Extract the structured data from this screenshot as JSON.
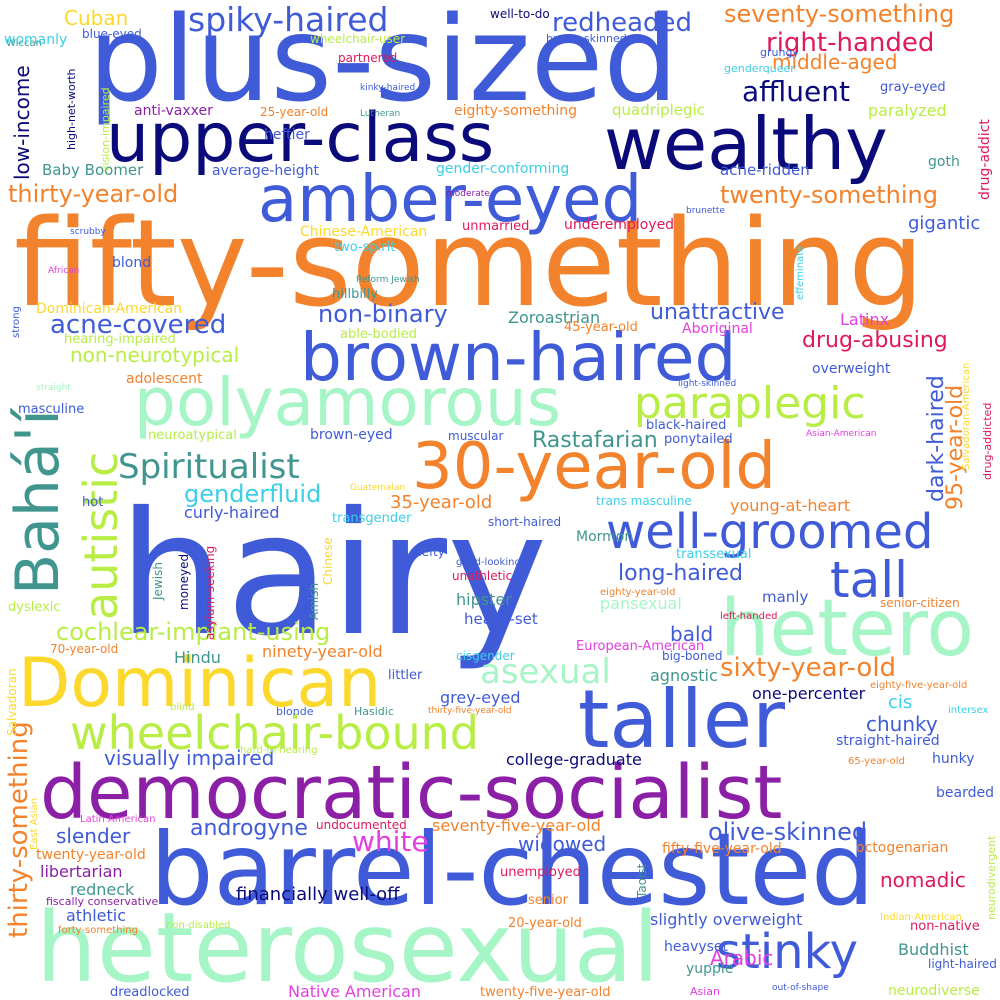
{
  "words": [
    {
      "text": "hairy",
      "color": "#3f5bd8"
    },
    {
      "text": "fifty-something",
      "color": "#f3822c"
    },
    {
      "text": "plus-sized",
      "color": "#3f5bd8"
    },
    {
      "text": "barrel-chested",
      "color": "#3f5bd8"
    },
    {
      "text": "heterosexual",
      "color": "#a6f5c6"
    },
    {
      "text": "democratic-socialist",
      "color": "#8b1fa6"
    },
    {
      "text": "upper-class",
      "color": "#0a0a7a"
    },
    {
      "text": "wealthy",
      "color": "#0a0a7a"
    },
    {
      "text": "taller",
      "color": "#3f5bd8"
    },
    {
      "text": "Dominican",
      "color": "#fbd82b"
    },
    {
      "text": "hetero",
      "color": "#a6f5c6"
    },
    {
      "text": "polyamorous",
      "color": "#a6f5c6"
    },
    {
      "text": "brown-haired",
      "color": "#3f5bd8"
    },
    {
      "text": "amber-eyed",
      "color": "#3f5bd8"
    },
    {
      "text": "30-year-old",
      "color": "#f3822c"
    },
    {
      "text": "Bahá'í",
      "color": "#40968f"
    },
    {
      "text": "wheelchair-bound",
      "color": "#b8ed46"
    },
    {
      "text": "autistic",
      "color": "#b8ed46"
    },
    {
      "text": "well-groomed",
      "color": "#3f5bd8"
    },
    {
      "text": "paraplegic",
      "color": "#b8ed46"
    },
    {
      "text": "tall",
      "color": "#3f5bd8"
    },
    {
      "text": "stinky",
      "color": "#3f5bd8"
    },
    {
      "text": "thirty-something",
      "color": "#f3822c"
    },
    {
      "text": "Spiritualist",
      "color": "#40968f"
    },
    {
      "text": "spiky-haired",
      "color": "#3f5bd8"
    },
    {
      "text": "asexual",
      "color": "#a6f5c6"
    },
    {
      "text": "affluent",
      "color": "#0a0a7a"
    },
    {
      "text": "sixty-year-old",
      "color": "#f3822c"
    },
    {
      "text": "redheaded",
      "color": "#3f5bd8"
    },
    {
      "text": "right-handed",
      "color": "#e0195a"
    },
    {
      "text": "seventy-something",
      "color": "#f3822c"
    },
    {
      "text": "twenty-something",
      "color": "#f3822c"
    },
    {
      "text": "thirty-year-old",
      "color": "#f3822c"
    },
    {
      "text": "acne-covered",
      "color": "#3f5bd8"
    },
    {
      "text": "non-binary",
      "color": "#3f5bd8"
    },
    {
      "text": "cochlear-implant-using",
      "color": "#b8ed46"
    },
    {
      "text": "genderfluid",
      "color": "#3ccfe6"
    },
    {
      "text": "white",
      "color": "#e43fe0"
    },
    {
      "text": "olive-skinned",
      "color": "#3f5bd8"
    },
    {
      "text": "androgyne",
      "color": "#3f5bd8"
    },
    {
      "text": "long-haired",
      "color": "#3f5bd8"
    },
    {
      "text": "dark-haired",
      "color": "#3f5bd8"
    },
    {
      "text": "95-year-old",
      "color": "#f3822c"
    },
    {
      "text": "Rastafarian",
      "color": "#40968f"
    },
    {
      "text": "unattractive",
      "color": "#3f5bd8"
    },
    {
      "text": "drug-abusing",
      "color": "#e0195a"
    },
    {
      "text": "middle-aged",
      "color": "#f3822c"
    },
    {
      "text": "low-income",
      "color": "#0a0a7a"
    },
    {
      "text": "non-neurotypical",
      "color": "#b8ed46"
    },
    {
      "text": "visually impaired",
      "color": "#3f5bd8"
    },
    {
      "text": "chunky",
      "color": "#3f5bd8"
    },
    {
      "text": "slender",
      "color": "#3f5bd8"
    },
    {
      "text": "bald",
      "color": "#3f5bd8"
    },
    {
      "text": "widowed",
      "color": "#3f5bd8"
    },
    {
      "text": "nomadic",
      "color": "#e0195a"
    },
    {
      "text": "financially well-off",
      "color": "#0a0a7a"
    },
    {
      "text": "Arabic",
      "color": "#e43fe0"
    },
    {
      "text": "Cuban",
      "color": "#fbd82b"
    },
    {
      "text": "curly-haired",
      "color": "#3f5bd8"
    },
    {
      "text": "35-year-old",
      "color": "#f3822c"
    },
    {
      "text": "young-at-heart",
      "color": "#f3822c"
    },
    {
      "text": "hipster",
      "color": "#40968f"
    },
    {
      "text": "pansexual",
      "color": "#a6f5c6"
    },
    {
      "text": "ninety-year-old",
      "color": "#f3822c"
    },
    {
      "text": "Hindu",
      "color": "#40968f"
    },
    {
      "text": "one-percenter",
      "color": "#0a0a7a"
    },
    {
      "text": "cis",
      "color": "#3ccfe6"
    },
    {
      "text": "gigantic",
      "color": "#3f5bd8"
    },
    {
      "text": "Baby Boomer",
      "color": "#40968f"
    },
    {
      "text": "Zoroastrian",
      "color": "#40968f"
    },
    {
      "text": "Latinx",
      "color": "#e43fe0"
    },
    {
      "text": "grey-eyed",
      "color": "#3f5bd8"
    },
    {
      "text": "agnostic",
      "color": "#40968f"
    },
    {
      "text": "college-graduate",
      "color": "#0a0a7a"
    },
    {
      "text": "seventy-five-year-old",
      "color": "#f3822c"
    },
    {
      "text": "libertarian",
      "color": "#8b1fa6"
    },
    {
      "text": "redneck",
      "color": "#40968f"
    },
    {
      "text": "athletic",
      "color": "#3f5bd8"
    },
    {
      "text": "slightly overweight",
      "color": "#3f5bd8"
    },
    {
      "text": "fifty-five-year-old",
      "color": "#f3822c"
    },
    {
      "text": "Buddhist",
      "color": "#40968f"
    },
    {
      "text": "Native American",
      "color": "#e43fe0"
    },
    {
      "text": "twenty-five-year-old",
      "color": "#f3822c"
    },
    {
      "text": "neurodiverse",
      "color": "#b8ed46"
    },
    {
      "text": "heavyset",
      "color": "#3f5bd8"
    },
    {
      "text": "yuppie",
      "color": "#40968f"
    },
    {
      "text": "twenty-year-old",
      "color": "#f3822c"
    },
    {
      "text": "hunky",
      "color": "#3f5bd8"
    },
    {
      "text": "straight-haired",
      "color": "#3f5bd8"
    },
    {
      "text": "bearded",
      "color": "#3f5bd8"
    },
    {
      "text": "octogenarian",
      "color": "#f3822c"
    },
    {
      "text": "manly",
      "color": "#3f5bd8"
    },
    {
      "text": "heavy-set",
      "color": "#3f5bd8"
    },
    {
      "text": "big-boned",
      "color": "#3f5bd8"
    },
    {
      "text": "European-American",
      "color": "#e43fe0"
    },
    {
      "text": "drug-addict",
      "color": "#e0195a"
    },
    {
      "text": "goth",
      "color": "#40968f"
    },
    {
      "text": "paralyzed",
      "color": "#b8ed46"
    },
    {
      "text": "gray-eyed",
      "color": "#3f5bd8"
    },
    {
      "text": "acne-ridden",
      "color": "#3f5bd8"
    },
    {
      "text": "quadriplegic",
      "color": "#b8ed46"
    },
    {
      "text": "heftier",
      "color": "#3f5bd8"
    },
    {
      "text": "eighty-something",
      "color": "#f3822c"
    },
    {
      "text": "gender-conforming",
      "color": "#3ccfe6"
    },
    {
      "text": "average-height",
      "color": "#3f5bd8"
    },
    {
      "text": "anti-vaxxer",
      "color": "#8b1fa6"
    },
    {
      "text": "underemployed",
      "color": "#e0195a"
    },
    {
      "text": "unmarried",
      "color": "#e0195a"
    },
    {
      "text": "Chinese-American",
      "color": "#fbd82b"
    },
    {
      "text": "two-spirit",
      "color": "#3ccfe6"
    },
    {
      "text": "blond",
      "color": "#3f5bd8"
    },
    {
      "text": "hillbilly",
      "color": "#40968f"
    },
    {
      "text": "Dominican-American",
      "color": "#fbd82b"
    },
    {
      "text": "hearing-impaired",
      "color": "#b8ed46"
    },
    {
      "text": "able-bodied",
      "color": "#b8ed46"
    },
    {
      "text": "45-year-old",
      "color": "#f3822c"
    },
    {
      "text": "Aboriginal",
      "color": "#e43fe0"
    },
    {
      "text": "overweight",
      "color": "#3f5bd8"
    },
    {
      "text": "adolescent",
      "color": "#f3822c"
    },
    {
      "text": "masculine",
      "color": "#3f5bd8"
    },
    {
      "text": "neuroatypical",
      "color": "#b8ed46"
    },
    {
      "text": "brown-eyed",
      "color": "#3f5bd8"
    },
    {
      "text": "muscular",
      "color": "#3f5bd8"
    },
    {
      "text": "black-haired",
      "color": "#3f5bd8"
    },
    {
      "text": "ponytailed",
      "color": "#3f5bd8"
    },
    {
      "text": "trans masculine",
      "color": "#3ccfe6"
    },
    {
      "text": "transgender",
      "color": "#3ccfe6"
    },
    {
      "text": "short-haired",
      "color": "#3f5bd8"
    },
    {
      "text": "Mormon",
      "color": "#40968f"
    },
    {
      "text": "hot",
      "color": "#3f5bd8"
    },
    {
      "text": "transsexual",
      "color": "#3ccfe6"
    },
    {
      "text": "hefty",
      "color": "#3f5bd8"
    },
    {
      "text": "good-looking",
      "color": "#3f5bd8"
    },
    {
      "text": "unathletic",
      "color": "#e0195a"
    },
    {
      "text": "dyslexic",
      "color": "#b8ed46"
    },
    {
      "text": "Jewish",
      "color": "#40968f"
    },
    {
      "text": "moneyed",
      "color": "#0a0a7a"
    },
    {
      "text": "asylum-seeking",
      "color": "#e0195a"
    },
    {
      "text": "Amish",
      "color": "#40968f"
    },
    {
      "text": "Chinese",
      "color": "#fbd82b"
    },
    {
      "text": "70-year-old",
      "color": "#f3822c"
    },
    {
      "text": "cisgender",
      "color": "#3ccfe6"
    },
    {
      "text": "littler",
      "color": "#3f5bd8"
    },
    {
      "text": "Salvadoran",
      "color": "#fbd82b"
    },
    {
      "text": "blind",
      "color": "#b8ed46"
    },
    {
      "text": "blonde",
      "color": "#3f5bd8"
    },
    {
      "text": "Hasidic",
      "color": "#40968f"
    },
    {
      "text": "thirty-five-year-old",
      "color": "#f3822c"
    },
    {
      "text": "hard-of-hearing",
      "color": "#b8ed46"
    },
    {
      "text": "65-year-old",
      "color": "#f3822c"
    },
    {
      "text": "intersex",
      "color": "#3ccfe6"
    },
    {
      "text": "eighty-five-year-old",
      "color": "#f3822c"
    },
    {
      "text": "left-handed",
      "color": "#e0195a"
    },
    {
      "text": "eighty-year-old",
      "color": "#f3822c"
    },
    {
      "text": "senior-citizen",
      "color": "#f3822c"
    },
    {
      "text": "Latin American",
      "color": "#e43fe0"
    },
    {
      "text": "undocumented",
      "color": "#e0195a"
    },
    {
      "text": "East Asian",
      "color": "#fbd82b"
    },
    {
      "text": "fiscally conservative",
      "color": "#8b1fa6"
    },
    {
      "text": "forty-something",
      "color": "#f3822c"
    },
    {
      "text": "non-disabled",
      "color": "#b8ed46"
    },
    {
      "text": "senior",
      "color": "#f3822c"
    },
    {
      "text": "20-year-old",
      "color": "#f3822c"
    },
    {
      "text": "unemployed",
      "color": "#e0195a"
    },
    {
      "text": "Taoist",
      "color": "#40968f"
    },
    {
      "text": "Indian-American",
      "color": "#fbd82b"
    },
    {
      "text": "non-native",
      "color": "#e0195a"
    },
    {
      "text": "light-haired",
      "color": "#3f5bd8"
    },
    {
      "text": "neurodivergent",
      "color": "#b8ed46"
    },
    {
      "text": "dreadlocked",
      "color": "#3f5bd8"
    },
    {
      "text": "Asian",
      "color": "#e43fe0"
    },
    {
      "text": "out-of-shape",
      "color": "#3f5bd8"
    },
    {
      "text": "Wiccan",
      "color": "#40968f"
    },
    {
      "text": "womanly",
      "color": "#3ccfe6"
    },
    {
      "text": "blue-eyed",
      "color": "#3f5bd8"
    },
    {
      "text": "wheelchair-user",
      "color": "#b8ed46"
    },
    {
      "text": "well-to-do",
      "color": "#0a0a7a"
    },
    {
      "text": "brown-skinned",
      "color": "#3f5bd8"
    },
    {
      "text": "partnered",
      "color": "#e0195a"
    },
    {
      "text": "kinky-haired",
      "color": "#3f5bd8"
    },
    {
      "text": "Lutheran",
      "color": "#40968f"
    },
    {
      "text": "25-year-old",
      "color": "#f3822c"
    },
    {
      "text": "high-net-worth",
      "color": "#0a0a7a"
    },
    {
      "text": "vision-impaired",
      "color": "#b8ed46"
    },
    {
      "text": "genderqueer",
      "color": "#3ccfe6"
    },
    {
      "text": "grungy",
      "color": "#3f5bd8"
    },
    {
      "text": "moderate",
      "color": "#8b1fa6"
    },
    {
      "text": "brunette",
      "color": "#3f5bd8"
    },
    {
      "text": "scrubby",
      "color": "#3f5bd8"
    },
    {
      "text": "African",
      "color": "#e43fe0"
    },
    {
      "text": "Reform Jewish",
      "color": "#40968f"
    },
    {
      "text": "effeminate",
      "color": "#3ccfe6"
    },
    {
      "text": "strong",
      "color": "#3f5bd8"
    },
    {
      "text": "straight",
      "color": "#a6f5c6"
    },
    {
      "text": "light-skinned",
      "color": "#3f5bd8"
    },
    {
      "text": "Asian-American",
      "color": "#e43fe0"
    },
    {
      "text": "Salvadoran-American",
      "color": "#fbd82b"
    },
    {
      "text": "drug-addicted",
      "color": "#e0195a"
    },
    {
      "text": "Guatemalan",
      "color": "#fbd82b"
    }
  ]
}
